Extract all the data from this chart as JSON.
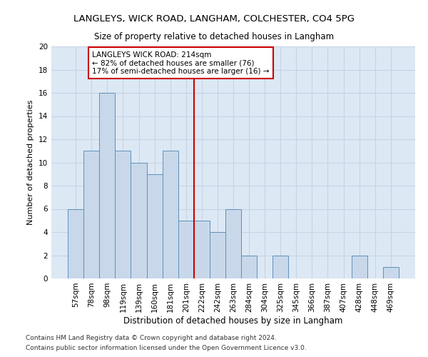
{
  "title1": "LANGLEYS, WICK ROAD, LANGHAM, COLCHESTER, CO4 5PG",
  "title2": "Size of property relative to detached houses in Langham",
  "xlabel": "Distribution of detached houses by size in Langham",
  "ylabel": "Number of detached properties",
  "categories": [
    "57sqm",
    "78sqm",
    "98sqm",
    "119sqm",
    "139sqm",
    "160sqm",
    "181sqm",
    "201sqm",
    "222sqm",
    "242sqm",
    "263sqm",
    "284sqm",
    "304sqm",
    "325sqm",
    "345sqm",
    "366sqm",
    "387sqm",
    "407sqm",
    "428sqm",
    "448sqm",
    "469sqm"
  ],
  "values": [
    6,
    11,
    16,
    11,
    10,
    9,
    11,
    5,
    5,
    4,
    6,
    2,
    0,
    2,
    0,
    0,
    0,
    0,
    2,
    0,
    1
  ],
  "bar_color": "#c8d8ea",
  "bar_edge_color": "#6090b8",
  "vline_x": 7.5,
  "vline_color": "#cc0000",
  "annotation_text": "LANGLEYS WICK ROAD: 214sqm\n← 82% of detached houses are smaller (76)\n17% of semi-detached houses are larger (16) →",
  "annotation_box_color": "#ffffff",
  "annotation_box_edge": "#cc0000",
  "ylim": [
    0,
    20
  ],
  "yticks": [
    0,
    2,
    4,
    6,
    8,
    10,
    12,
    14,
    16,
    18,
    20
  ],
  "grid_color": "#c8d4e4",
  "bg_color": "#dce8f4",
  "footer1": "Contains HM Land Registry data © Crown copyright and database right 2024.",
  "footer2": "Contains public sector information licensed under the Open Government Licence v3.0.",
  "title1_fontsize": 9.5,
  "title2_fontsize": 8.5,
  "xlabel_fontsize": 8.5,
  "ylabel_fontsize": 8.0,
  "tick_fontsize": 7.5,
  "ann_fontsize": 7.5,
  "footer_fontsize": 6.5
}
